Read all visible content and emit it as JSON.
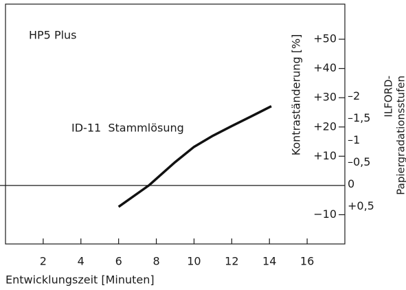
{
  "chart_data": {
    "type": "line",
    "annotations": [
      "HP5 Plus",
      "ID-11  Stammlösung"
    ],
    "xlabel": "Entwicklungszeit [Minuten]",
    "ylabel": "Kontraständerung [%]",
    "y2label": [
      "ILFORD-",
      "Papiergradationsstufen"
    ],
    "x": [
      6,
      7.6,
      9,
      10,
      11,
      12,
      13,
      14.1
    ],
    "series": [
      {
        "color": "#111111",
        "values": [
          -7.3,
          0,
          8,
          13.2,
          17,
          20.3,
          23.5,
          27.1
        ]
      }
    ],
    "xlim": [
      0,
      18
    ],
    "xticks": [
      2,
      4,
      6,
      8,
      10,
      12,
      14,
      16
    ],
    "ylim": [
      -20,
      62
    ],
    "yticks": [
      {
        "value": 50,
        "label": "+50"
      },
      {
        "value": 40,
        "label": "+40"
      },
      {
        "value": 30,
        "label": "+30"
      },
      {
        "value": 20,
        "label": "+20"
      },
      {
        "value": 10,
        "label": "+10"
      },
      {
        "value": -10,
        "label": "−10"
      }
    ],
    "y2lim": [
      1.35,
      -4.1
    ],
    "y2ticks": [
      {
        "value": -2,
        "label": "–2"
      },
      {
        "value": -1.5,
        "label": "–1,5"
      },
      {
        "value": -1,
        "label": "–1"
      },
      {
        "value": -0.5,
        "label": "–0,5"
      },
      0,
      {
        "value": 0.5,
        "label": "+0,5"
      }
    ],
    "zero_line": 0
  }
}
